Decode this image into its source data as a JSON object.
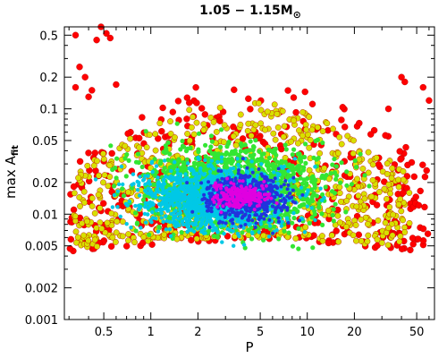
{
  "chart_data": {
    "type": "scatter",
    "title_main": "1.05 − 1.15M",
    "title_symbol": "⊙",
    "xlabel": "P",
    "ylabel_main": "max A",
    "ylabel_sub": "fit",
    "xscale": "log",
    "yscale": "log",
    "xlim": [
      0.28,
      65
    ],
    "ylim": [
      0.001,
      0.6
    ],
    "grid": false,
    "x_ticks": [
      0.5,
      1,
      2,
      5,
      10,
      20,
      50
    ],
    "x_tick_labels": [
      "0.5",
      "1",
      "2",
      "5",
      "10",
      "20",
      "50"
    ],
    "y_ticks": [
      0.001,
      0.002,
      0.005,
      0.01,
      0.02,
      0.05,
      0.1,
      0.2,
      0.5
    ],
    "y_tick_labels": [
      "0.001",
      "0.002",
      "0.005",
      "0.01",
      "0.02",
      "0.05",
      "0.1",
      "0.2",
      "0.5"
    ],
    "density_colors": {
      "sparse": "#ff0000",
      "low": "#d8e000",
      "medium": "#33e633",
      "high": "#00c8e6",
      "higher": "#2233dd",
      "peak": "#e000e0"
    },
    "density_regions": [
      {
        "level": "sparse",
        "x_range": [
          0.3,
          60
        ],
        "y_range": [
          0.003,
          0.2
        ]
      },
      {
        "level": "low",
        "x_range": [
          0.32,
          45
        ],
        "y_range": [
          0.0035,
          0.12
        ]
      },
      {
        "level": "medium",
        "x_range": [
          0.33,
          35
        ],
        "y_range": [
          0.0035,
          0.09
        ]
      },
      {
        "level": "high",
        "x_range": [
          0.35,
          20
        ],
        "y_range": [
          0.004,
          0.05
        ]
      },
      {
        "level": "higher",
        "x_range": [
          1.3,
          12
        ],
        "y_range": [
          0.006,
          0.035
        ]
      },
      {
        "level": "peak",
        "x_range": [
          1.8,
          8
        ],
        "y_range": [
          0.009,
          0.025
        ]
      }
    ],
    "outliers": [
      {
        "x": 0.33,
        "y": 0.5
      },
      {
        "x": 0.35,
        "y": 0.25
      },
      {
        "x": 0.38,
        "y": 0.2
      },
      {
        "x": 0.45,
        "y": 0.45
      },
      {
        "x": 0.48,
        "y": 0.6
      },
      {
        "x": 0.52,
        "y": 0.52
      },
      {
        "x": 0.55,
        "y": 0.47
      },
      {
        "x": 0.42,
        "y": 0.15
      },
      {
        "x": 0.6,
        "y": 0.17
      },
      {
        "x": 0.33,
        "y": 0.16
      },
      {
        "x": 0.4,
        "y": 0.13
      },
      {
        "x": 40,
        "y": 0.2
      },
      {
        "x": 42,
        "y": 0.18
      },
      {
        "x": 55,
        "y": 0.16
      },
      {
        "x": 33,
        "y": 0.1
      },
      {
        "x": 60,
        "y": 0.12
      }
    ]
  }
}
